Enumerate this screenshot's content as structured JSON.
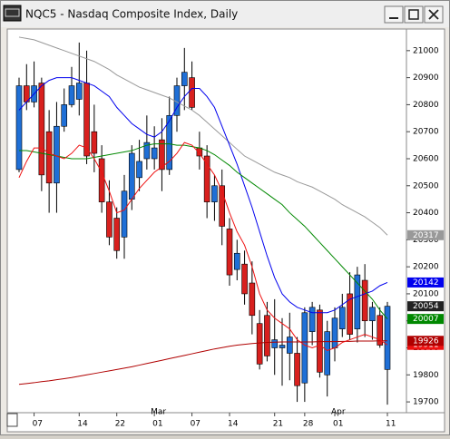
{
  "chart_data": {
    "type": "candlestick",
    "window_title": "NQC5 - Nasdaq Composite Index, Daily",
    "categories": [
      null,
      null,
      "07",
      null,
      null,
      null,
      null,
      null,
      "14",
      null,
      null,
      null,
      null,
      "22",
      null,
      null,
      null,
      null,
      "01",
      null,
      null,
      null,
      null,
      "07",
      null,
      null,
      null,
      null,
      "14",
      null,
      null,
      null,
      null,
      null,
      "21",
      null,
      null,
      null,
      "28",
      null,
      null,
      null,
      "01",
      null,
      null,
      null,
      null,
      null,
      null,
      "11"
    ],
    "month_labels": [
      {
        "at": 18,
        "label": "Mar"
      },
      {
        "at": 42,
        "label": "Apr"
      }
    ],
    "up_color": "#1f6fd6",
    "down_color": "#d8201e",
    "open": [
      20560,
      20870,
      20810,
      20880,
      20700,
      20510,
      20720,
      20800,
      20820,
      20880,
      20700,
      20600,
      20440,
      20380,
      20310,
      20450,
      20530,
      20600,
      20600,
      20670,
      20560,
      20760,
      20870,
      20900,
      20640,
      20610,
      20440,
      20500,
      20340,
      20190,
      20210,
      20140,
      19990,
      20020,
      19900,
      19900,
      19880,
      19880,
      19770,
      19960,
      20040,
      19800,
      19900,
      19970,
      20100,
      19970,
      20150,
      20000,
      20020,
      19820
    ],
    "high": [
      20900,
      20950,
      20960,
      20900,
      20780,
      20810,
      20860,
      20940,
      21030,
      21000,
      20800,
      20650,
      20520,
      20420,
      20540,
      20650,
      20670,
      20760,
      20720,
      20750,
      20830,
      20900,
      21010,
      20960,
      20700,
      20650,
      20540,
      20560,
      20380,
      20300,
      20260,
      20220,
      20040,
      20070,
      20080,
      20010,
      20030,
      19940,
      20050,
      20070,
      20060,
      20000,
      20050,
      20100,
      20180,
      20200,
      20210,
      20070,
      20050,
      20070
    ],
    "low": [
      20550,
      20780,
      20790,
      20480,
      20400,
      20400,
      20700,
      20790,
      20760,
      20580,
      20550,
      20400,
      20280,
      20230,
      20230,
      20410,
      20480,
      20560,
      20560,
      20480,
      20540,
      20700,
      20780,
      20780,
      20560,
      20380,
      20370,
      20280,
      20130,
      20150,
      20060,
      19950,
      19820,
      19850,
      19800,
      19760,
      19780,
      19700,
      19700,
      19910,
      19790,
      19720,
      19850,
      19940,
      19930,
      19920,
      19940,
      19930,
      19900,
      19690
    ],
    "close": [
      20870,
      20810,
      20870,
      20540,
      20510,
      20720,
      20800,
      20870,
      20880,
      20610,
      20620,
      20440,
      20310,
      20260,
      20480,
      20620,
      20590,
      20660,
      20640,
      20560,
      20760,
      20870,
      20920,
      20790,
      20610,
      20440,
      20500,
      20350,
      20170,
      20250,
      20100,
      20020,
      19840,
      19870,
      19930,
      19910,
      19940,
      19760,
      20030,
      20050,
      19810,
      19960,
      20010,
      20050,
      19950,
      20170,
      20000,
      20050,
      19910,
      20054
    ],
    "series": [
      {
        "color": "#999999",
        "values": [
          21050,
          21045,
          21040,
          21030,
          21020,
          21010,
          21000,
          20990,
          20980,
          20970,
          20960,
          20945,
          20930,
          20910,
          20895,
          20880,
          20865,
          20855,
          20845,
          20835,
          20825,
          20810,
          20795,
          20780,
          20760,
          20735,
          20710,
          20685,
          20660,
          20635,
          20610,
          20595,
          20580,
          20565,
          20550,
          20540,
          20530,
          20515,
          20505,
          20495,
          20480,
          20465,
          20450,
          20430,
          20415,
          20400,
          20385,
          20365,
          20345,
          20317
        ]
      },
      {
        "color": "#0000ee",
        "values": [
          20780,
          20810,
          20840,
          20870,
          20890,
          20900,
          20900,
          20900,
          20890,
          20880,
          20870,
          20850,
          20830,
          20790,
          20760,
          20730,
          20710,
          20690,
          20680,
          20700,
          20740,
          20790,
          20830,
          20860,
          20860,
          20830,
          20790,
          20720,
          20650,
          20580,
          20500,
          20420,
          20330,
          20240,
          20160,
          20100,
          20070,
          20050,
          20040,
          20030,
          20030,
          20030,
          20040,
          20060,
          20080,
          20090,
          20100,
          20110,
          20130,
          20142
        ]
      },
      {
        "color": "#008800",
        "values": [
          20630,
          20630,
          20625,
          20620,
          20615,
          20610,
          20605,
          20600,
          20600,
          20600,
          20605,
          20610,
          20615,
          20620,
          20625,
          20630,
          20640,
          20650,
          20655,
          20655,
          20655,
          20650,
          20650,
          20645,
          20640,
          20630,
          20615,
          20595,
          20575,
          20550,
          20530,
          20510,
          20490,
          20470,
          20450,
          20430,
          20400,
          20375,
          20350,
          20320,
          20290,
          20260,
          20230,
          20200,
          20170,
          20140,
          20110,
          20080,
          20040,
          20007
        ]
      },
      {
        "color": "#b00000",
        "values": [
          19765,
          19768,
          19771,
          19775,
          19778,
          19782,
          19786,
          19790,
          19795,
          19800,
          19805,
          19810,
          19815,
          19820,
          19825,
          19830,
          19836,
          19842,
          19848,
          19854,
          19860,
          19866,
          19872,
          19878,
          19884,
          19890,
          19896,
          19901,
          19906,
          19910,
          19913,
          19916,
          19918,
          19920,
          19921,
          19922,
          19922,
          19922,
          19922,
          19922,
          19923,
          19923,
          19923,
          19924,
          19924,
          19925,
          19925,
          19925,
          19926,
          19926
        ]
      },
      {
        "color": "#ee1111",
        "values": [
          20530,
          20590,
          20640,
          20640,
          20620,
          20610,
          20600,
          20620,
          20650,
          20640,
          20600,
          20550,
          20480,
          20400,
          20410,
          20450,
          20490,
          20520,
          20550,
          20570,
          20590,
          20620,
          20660,
          20650,
          20620,
          20580,
          20540,
          20480,
          20400,
          20330,
          20280,
          20200,
          20100,
          20040,
          20010,
          19990,
          19970,
          19930,
          19910,
          19900,
          19910,
          19890,
          19900,
          19920,
          19930,
          19940,
          19950,
          19940,
          19930,
          19911
        ]
      }
    ],
    "last_close_color": "#222222",
    "ylim": [
      19660,
      21080
    ],
    "yticks": [
      19700,
      19800,
      19900,
      20000,
      20100,
      20200,
      20300,
      20400,
      20500,
      20600,
      20700,
      20800,
      20900,
      21000
    ]
  }
}
